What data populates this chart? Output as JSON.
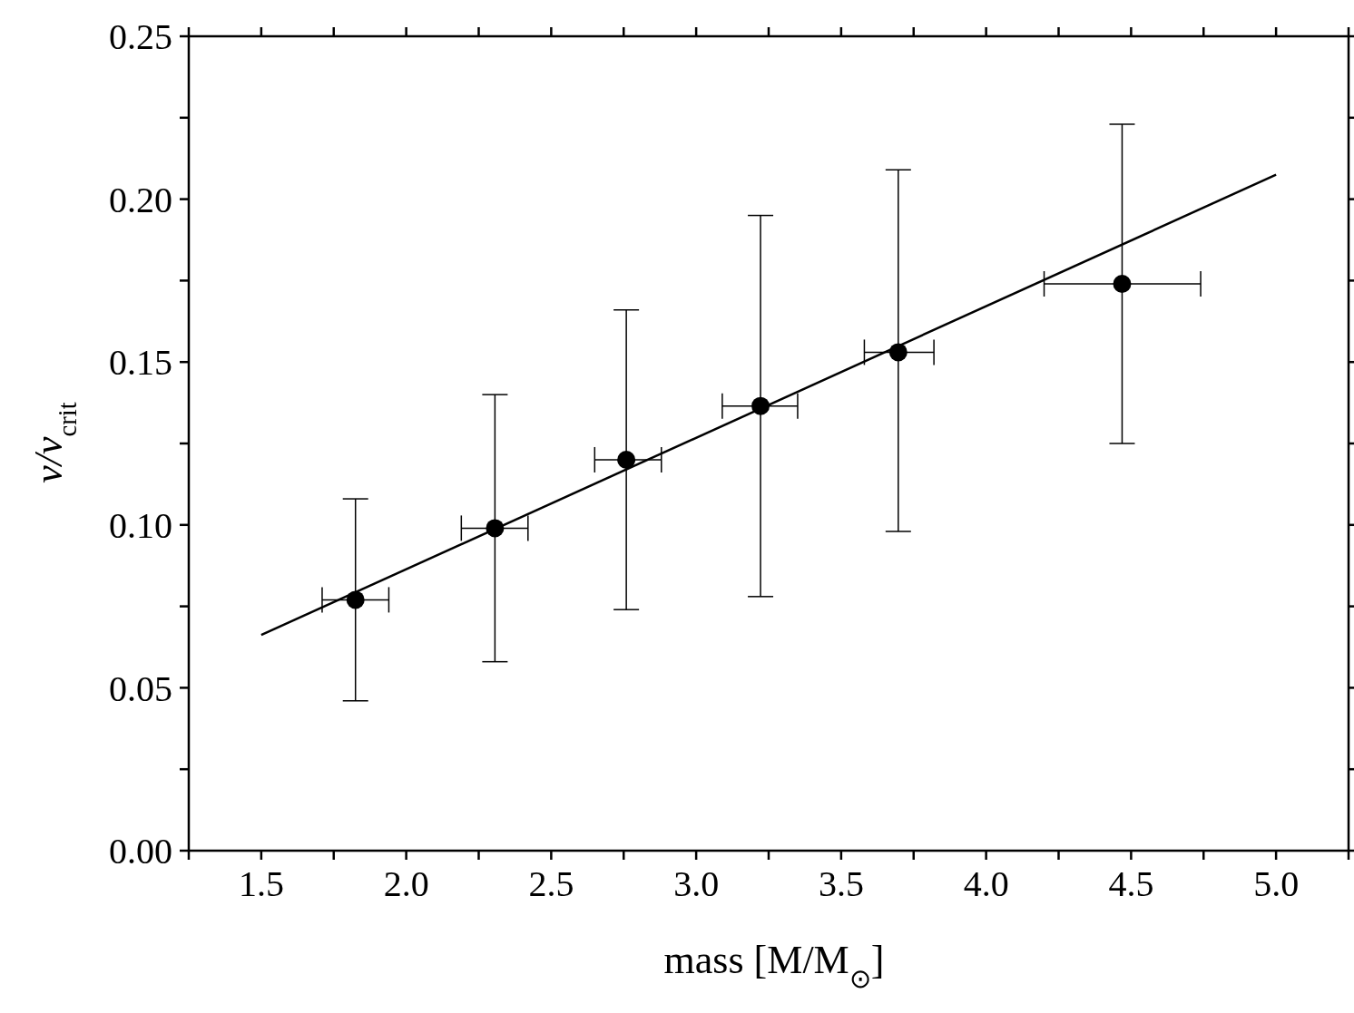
{
  "chart_data": {
    "type": "scatter",
    "xlabel": "mass [M/M$_{⊙}$]",
    "ylabel": "v/v$_{crit}$",
    "xlim": [
      1.25,
      5.25
    ],
    "xticks": [
      {
        "value": 1.25,
        "label": null
      },
      1.5,
      {
        "value": 1.75,
        "label": null
      },
      {
        "value": 2,
        "label": "2.0"
      },
      {
        "value": 2.25,
        "label": null
      },
      2.5,
      {
        "value": 2.75,
        "label": null
      },
      {
        "value": 3,
        "label": "3.0"
      },
      {
        "value": 3.25,
        "label": null
      },
      3.5,
      {
        "value": 3.75,
        "label": null
      },
      {
        "value": 4,
        "label": "4.0"
      },
      {
        "value": 4.25,
        "label": null
      },
      4.5,
      {
        "value": 4.75,
        "label": null
      },
      {
        "value": 5,
        "label": "5.0"
      },
      {
        "value": 5.25,
        "label": null
      }
    ],
    "ylim": [
      0,
      0.25
    ],
    "yticks": [
      {
        "value": 0,
        "label": "0.00"
      },
      {
        "value": 0.025,
        "label": null
      },
      0.05,
      {
        "value": 0.075,
        "label": null
      },
      {
        "value": 0.1,
        "label": "0.10"
      },
      {
        "value": 0.125,
        "label": null
      },
      0.15,
      {
        "value": 0.175,
        "label": null
      },
      {
        "value": 0.2,
        "label": "0.20"
      },
      {
        "value": 0.225,
        "label": null
      },
      0.25
    ],
    "legend": false,
    "series": [
      {
        "color": "#000000",
        "marker": "circle",
        "x": [
          1.825,
          2.306,
          2.759,
          3.222,
          3.697,
          4.469
        ],
        "values": [
          0.077,
          0.099,
          0.12,
          0.1365,
          0.153,
          0.174
        ],
        "errors": [
          [
            0.046,
            0.108
          ],
          [
            0.058,
            0.14
          ],
          [
            0.074,
            0.166
          ],
          [
            0.078,
            0.195
          ],
          [
            0.098,
            0.209
          ],
          [
            0.125,
            0.223
          ]
        ],
        "xerrors": [
          [
            1.71,
            1.94
          ],
          [
            2.19,
            2.42
          ],
          [
            2.65,
            2.88
          ],
          [
            3.09,
            3.35
          ],
          [
            3.58,
            3.82
          ],
          [
            4.2,
            4.74
          ]
        ]
      },
      {
        "type": "line",
        "color": "#000000",
        "marker": "none",
        "line_style": "solid",
        "x": [
          1.5,
          5.0
        ],
        "values": [
          0.0662,
          0.2075
        ]
      }
    ]
  }
}
